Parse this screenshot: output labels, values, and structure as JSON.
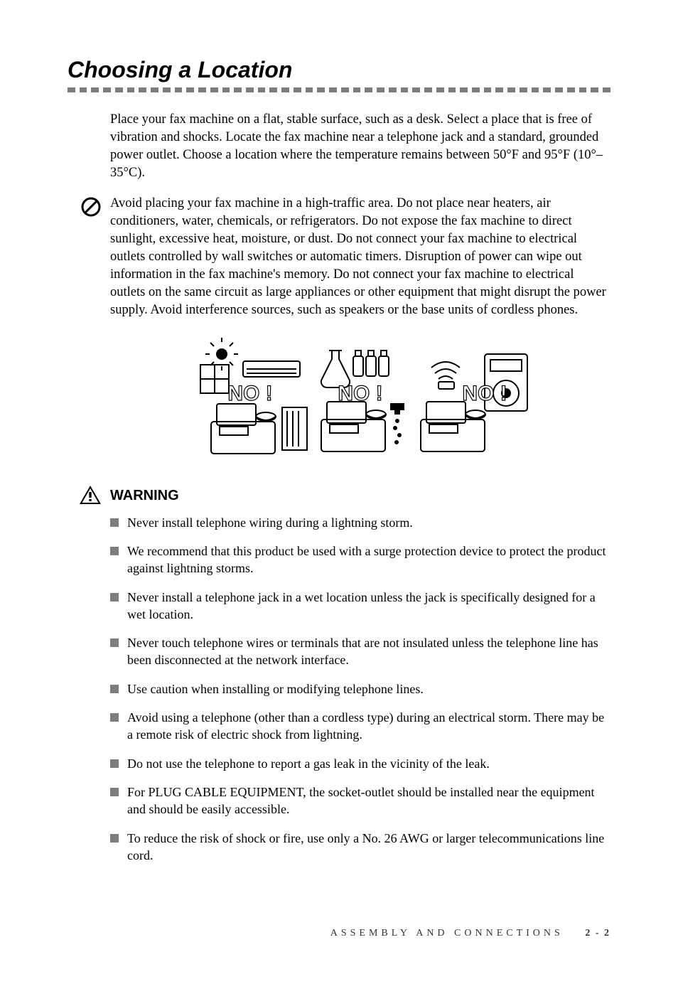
{
  "title": "Choosing a Location",
  "dash_count": 46,
  "dash_color": "#7d7d7d",
  "para1": "Place your fax machine on a flat, stable surface, such as a desk. Select a place that is free of vibration and shocks. Locate the fax machine near a telephone jack and a standard, grounded power outlet. Choose a location where the temperature remains between 50°F and 95°F (10°–35°C).",
  "para2": "Avoid placing your fax machine in a high-traffic area. Do not place near heaters, air conditioners, water, chemicals, or refrigerators. Do not expose the fax machine to direct sunlight, excessive heat, moisture, or dust. Do not connect your fax machine to electrical outlets controlled by wall switches or automatic timers. Disruption of power can wipe out information in the fax machine's memory. Do not connect your fax machine to electrical outlets on the same circuit as large appliances or other equipment that might disrupt the power supply. Avoid interference sources, such as speakers or the base units of cordless phones.",
  "figure": {
    "labels": [
      "NO !",
      "NO !",
      "NO !"
    ],
    "label_color": "#ffffff",
    "stroke": "#000000",
    "fontsize": 30
  },
  "warning": {
    "title": "WARNING",
    "items": [
      "Never install telephone wiring during a lightning storm.",
      "We recommend that this product be used with a surge protection device to protect the product against lightning storms.",
      "Never install a telephone jack in a wet location unless the jack is specifically designed for a wet location.",
      "Never touch telephone wires or terminals that are not insulated unless the telephone line has been disconnected at the network interface.",
      "Use caution when installing or modifying telephone lines.",
      "Avoid using a telephone (other than a cordless type) during an electrical storm. There may be a remote risk of electric shock from lightning.",
      "Do not use the telephone to report a gas leak in the vicinity of the leak.",
      "For PLUG CABLE EQUIPMENT, the socket-outlet should be installed near the equipment and should be easily accessible.",
      "To reduce the risk of shock or fire, use only a No. 26 AWG or larger telecommunications line cord."
    ],
    "bullet_color": "#7d7d7d"
  },
  "footer": {
    "section": "ASSEMBLY AND CONNECTIONS",
    "page": "2 - 2"
  }
}
